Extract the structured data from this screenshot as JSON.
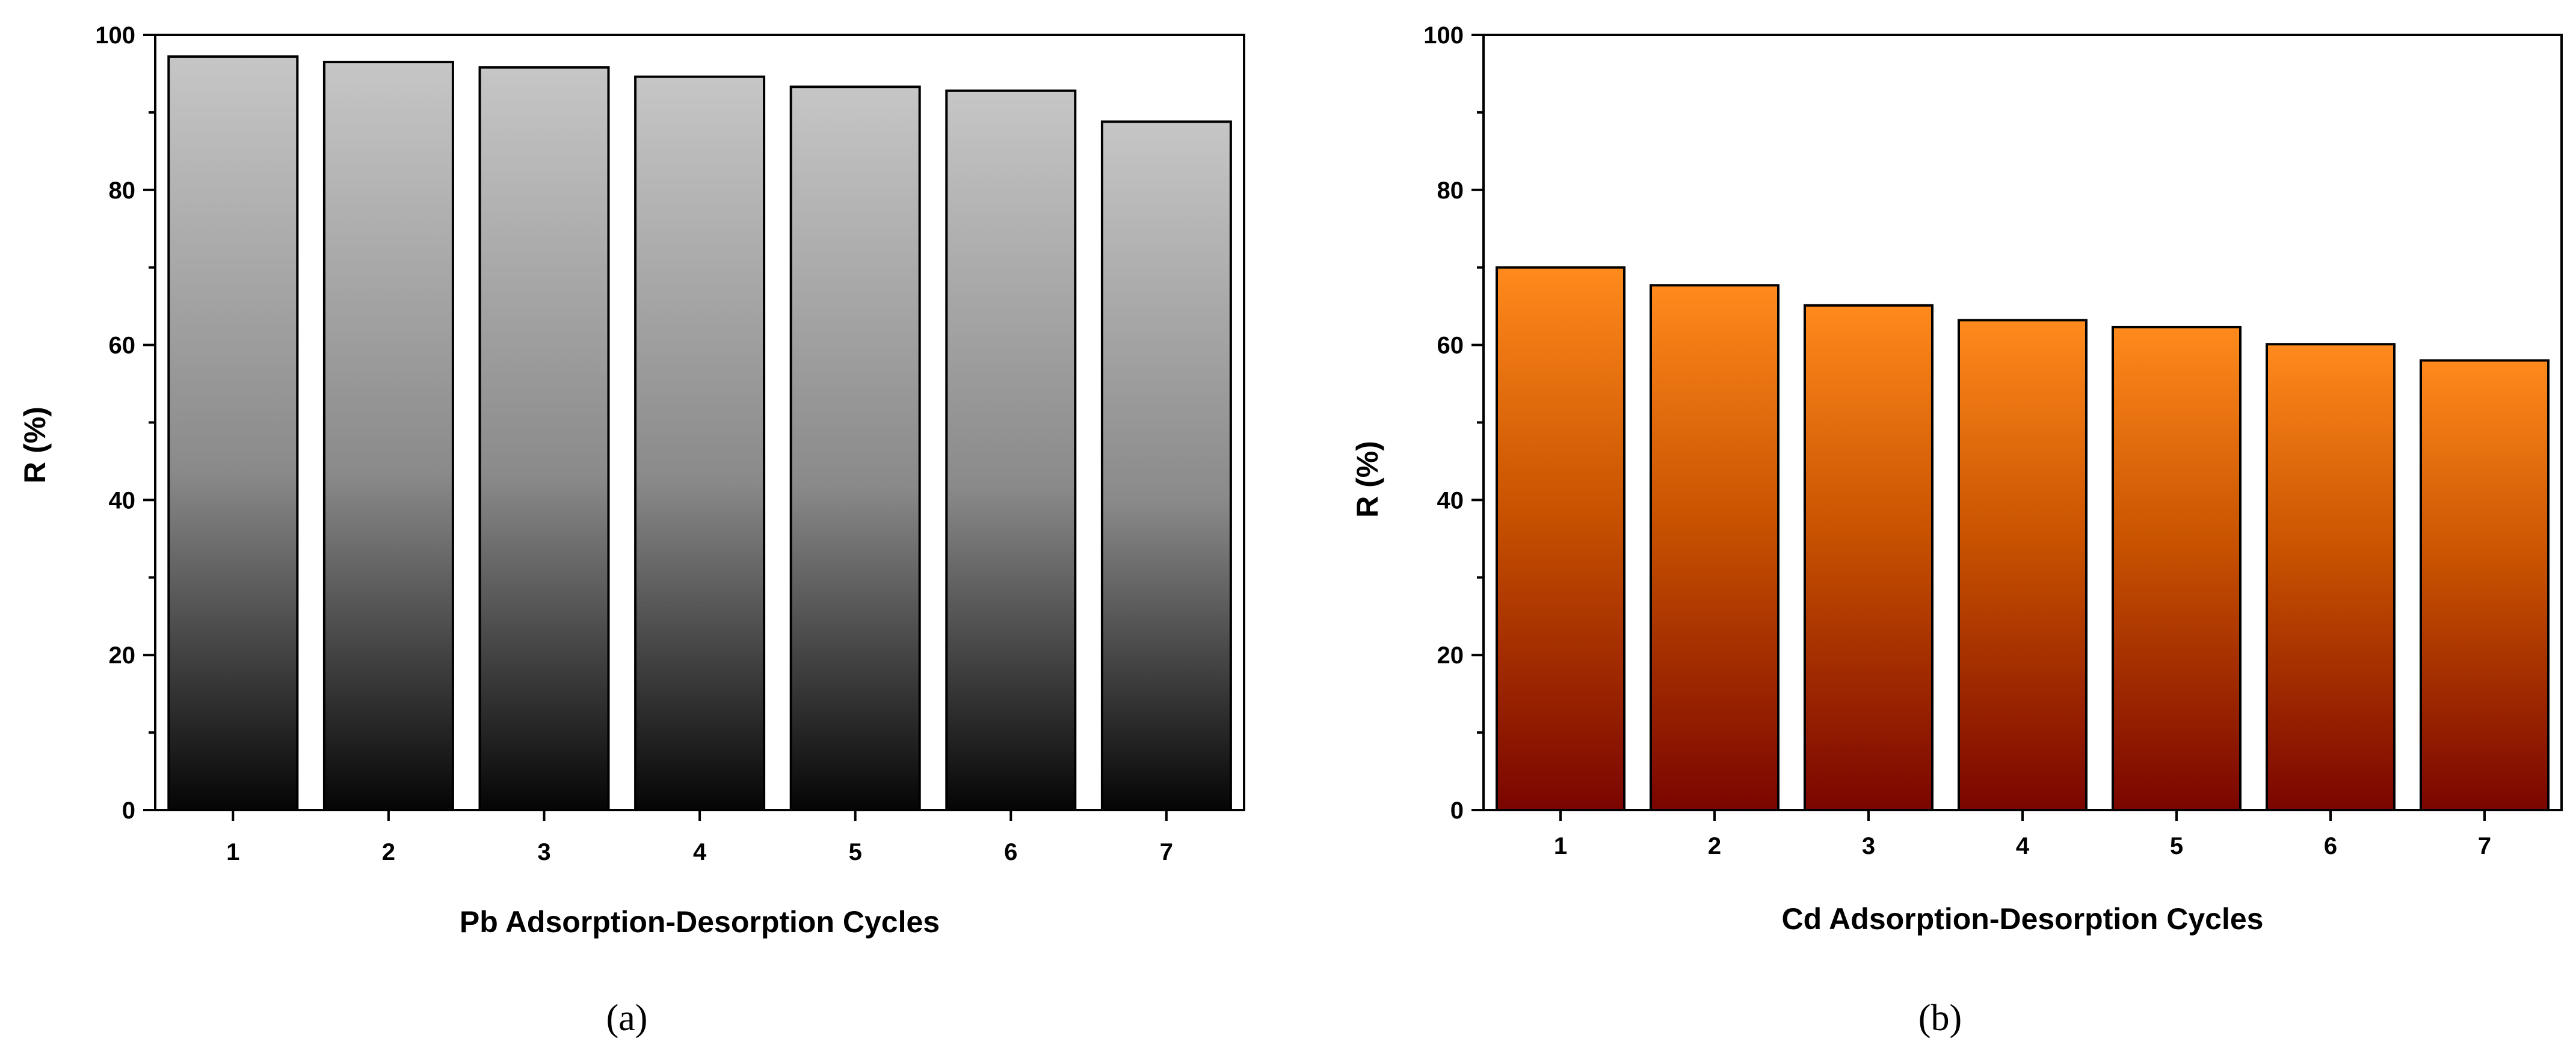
{
  "chart_data": [
    {
      "type": "bar",
      "panel_label": "(a)",
      "categories": [
        "1",
        "2",
        "3",
        "4",
        "5",
        "6",
        "7"
      ],
      "values": [
        97.2,
        96.5,
        95.8,
        94.6,
        93.3,
        92.8,
        88.8
      ],
      "xlabel": "Pb  Adsorption-Desorption Cycles",
      "ylabel": "R (%)",
      "ylim": [
        0,
        100
      ],
      "yticks": [
        "0",
        "20",
        "40",
        "60",
        "80",
        "100"
      ],
      "colors": {
        "top": "#c6c6c6",
        "mid": "#8a8a8a",
        "bottom": "#050505"
      }
    },
    {
      "type": "bar",
      "panel_label": "(b)",
      "categories": [
        "1",
        "2",
        "3",
        "4",
        "5",
        "6",
        "7"
      ],
      "values": [
        70.0,
        67.7,
        65.1,
        63.2,
        62.3,
        60.1,
        58.0
      ],
      "xlabel": "Cd  Adsorption-Desorption Cycles",
      "ylabel": "R (%)",
      "ylim": [
        0,
        100
      ],
      "yticks": [
        "0",
        "20",
        "40",
        "60",
        "80",
        "100"
      ],
      "colors": {
        "top": "#ff8a1c",
        "mid": "#c85200",
        "bottom": "#7a0500"
      }
    }
  ]
}
